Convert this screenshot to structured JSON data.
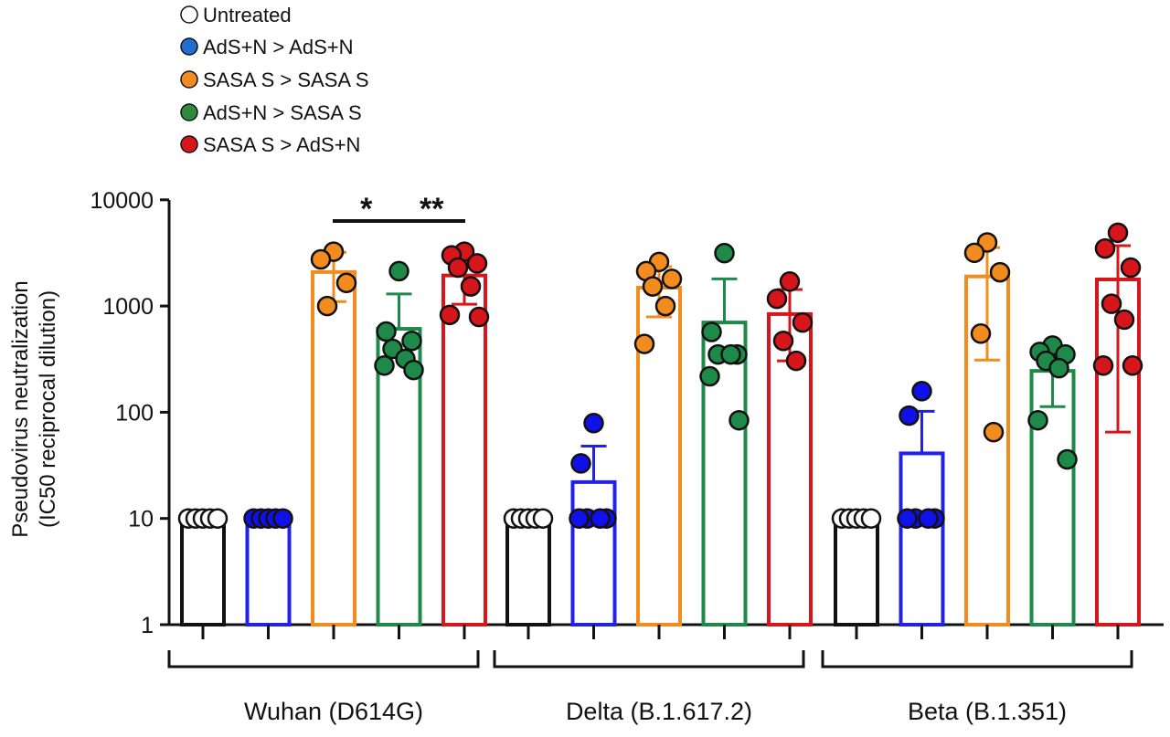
{
  "chart_data": {
    "type": "bar",
    "ylabel": [
      "Pseudovirus neutralization",
      "(IC50 reciprocal dilution)"
    ],
    "yscale": "log",
    "ylim": [
      1,
      10000
    ],
    "yticks": [
      "1",
      "10",
      "100",
      "1000",
      "10000"
    ],
    "grid": false,
    "legend_position": "top-left",
    "legend": [
      {
        "name": "Untreated",
        "color": "#ffffff"
      },
      {
        "name": "AdS+N > AdS+N",
        "color": "#1f6fd0"
      },
      {
        "name": "SASA S > SASA S",
        "color": "#f28c1e"
      },
      {
        "name": "AdS+N > SASA S",
        "color": "#2e8b3e"
      },
      {
        "name": "SASA S > AdS+N",
        "color": "#d7161c"
      }
    ],
    "bar_colors": [
      "#111111",
      "#2222e6",
      "#f28c1e",
      "#1e8a4a",
      "#d7161c"
    ],
    "point_colors": [
      "#ffffff",
      "#1010e8",
      "#f28c1e",
      "#1e8a4a",
      "#d7161c"
    ],
    "groups": [
      {
        "label": "Wuhan (D614G)",
        "bars": [
          {
            "series": "Untreated",
            "mean": 10,
            "err": [
              10,
              10
            ],
            "points": [
              10,
              10,
              10,
              10,
              10
            ]
          },
          {
            "series": "AdS+N > AdS+N",
            "mean": 10,
            "err": [
              10,
              10
            ],
            "points": [
              10,
              10,
              10,
              10,
              10
            ]
          },
          {
            "series": "SASA S > SASA S",
            "mean": 2090,
            "err": [
              1100,
              3200
            ],
            "points": [
              3250,
              2750,
              1650,
              1000
            ]
          },
          {
            "series": "AdS+N > SASA S",
            "mean": 610,
            "err": [
              610,
              1300
            ],
            "points": [
              2130,
              575,
              470,
              395,
              318,
              275,
              250
            ]
          },
          {
            "series": "SASA S > AdS+N",
            "mean": 1940,
            "err": [
              1040,
              3000
            ],
            "points": [
              3250,
              3000,
              2520,
              2300,
              1530,
              825,
              790
            ]
          }
        ],
        "significance": [
          {
            "from": 2,
            "to": 3,
            "label": "*"
          },
          {
            "from": 3,
            "to": 4,
            "label": "**"
          }
        ]
      },
      {
        "label": "Delta (B.1.617.2)",
        "bars": [
          {
            "series": "Untreated",
            "mean": 10,
            "err": [
              10,
              10
            ],
            "points": [
              10,
              10,
              10,
              10,
              10
            ]
          },
          {
            "series": "AdS+N > AdS+N",
            "mean": 22,
            "err": [
              22,
              48
            ],
            "points": [
              79,
              33,
              10,
              10,
              10,
              10
            ]
          },
          {
            "series": "SASA S > SASA S",
            "mean": 1490,
            "err": [
              790,
              2350
            ],
            "points": [
              2600,
              2130,
              1800,
              1530,
              1000,
              440
            ]
          },
          {
            "series": "AdS+N > SASA S",
            "mean": 700,
            "err": [
              700,
              1800
            ],
            "points": [
              3150,
              570,
              350,
              350,
              350,
              218,
              84
            ]
          },
          {
            "series": "SASA S > AdS+N",
            "mean": 840,
            "err": [
              305,
              1430
            ],
            "points": [
              1700,
              1170,
              700,
              470,
              305
            ]
          }
        ],
        "significance": []
      },
      {
        "label": "Beta (B.1.351)",
        "bars": [
          {
            "series": "Untreated",
            "mean": 10,
            "err": [
              10,
              10
            ],
            "points": [
              10,
              10,
              10,
              10,
              10
            ]
          },
          {
            "series": "AdS+N > AdS+N",
            "mean": 41,
            "err": [
              41,
              102
            ],
            "points": [
              158,
              93,
              10,
              10,
              10,
              10
            ]
          },
          {
            "series": "SASA S > SASA S",
            "mean": 1900,
            "err": [
              310,
              3550
            ],
            "points": [
              3970,
              3170,
              2080,
              550,
              65
            ]
          },
          {
            "series": "AdS+N > SASA S",
            "mean": 245,
            "err": [
              113,
              245
            ],
            "points": [
              425,
              370,
              350,
              305,
              260,
              84,
              36
            ]
          },
          {
            "series": "SASA S > AdS+N",
            "mean": 1780,
            "err": [
              65,
              3700
            ],
            "points": [
              4900,
              3480,
              2300,
              1050,
              745,
              275,
              275
            ]
          }
        ],
        "significance": []
      }
    ]
  }
}
